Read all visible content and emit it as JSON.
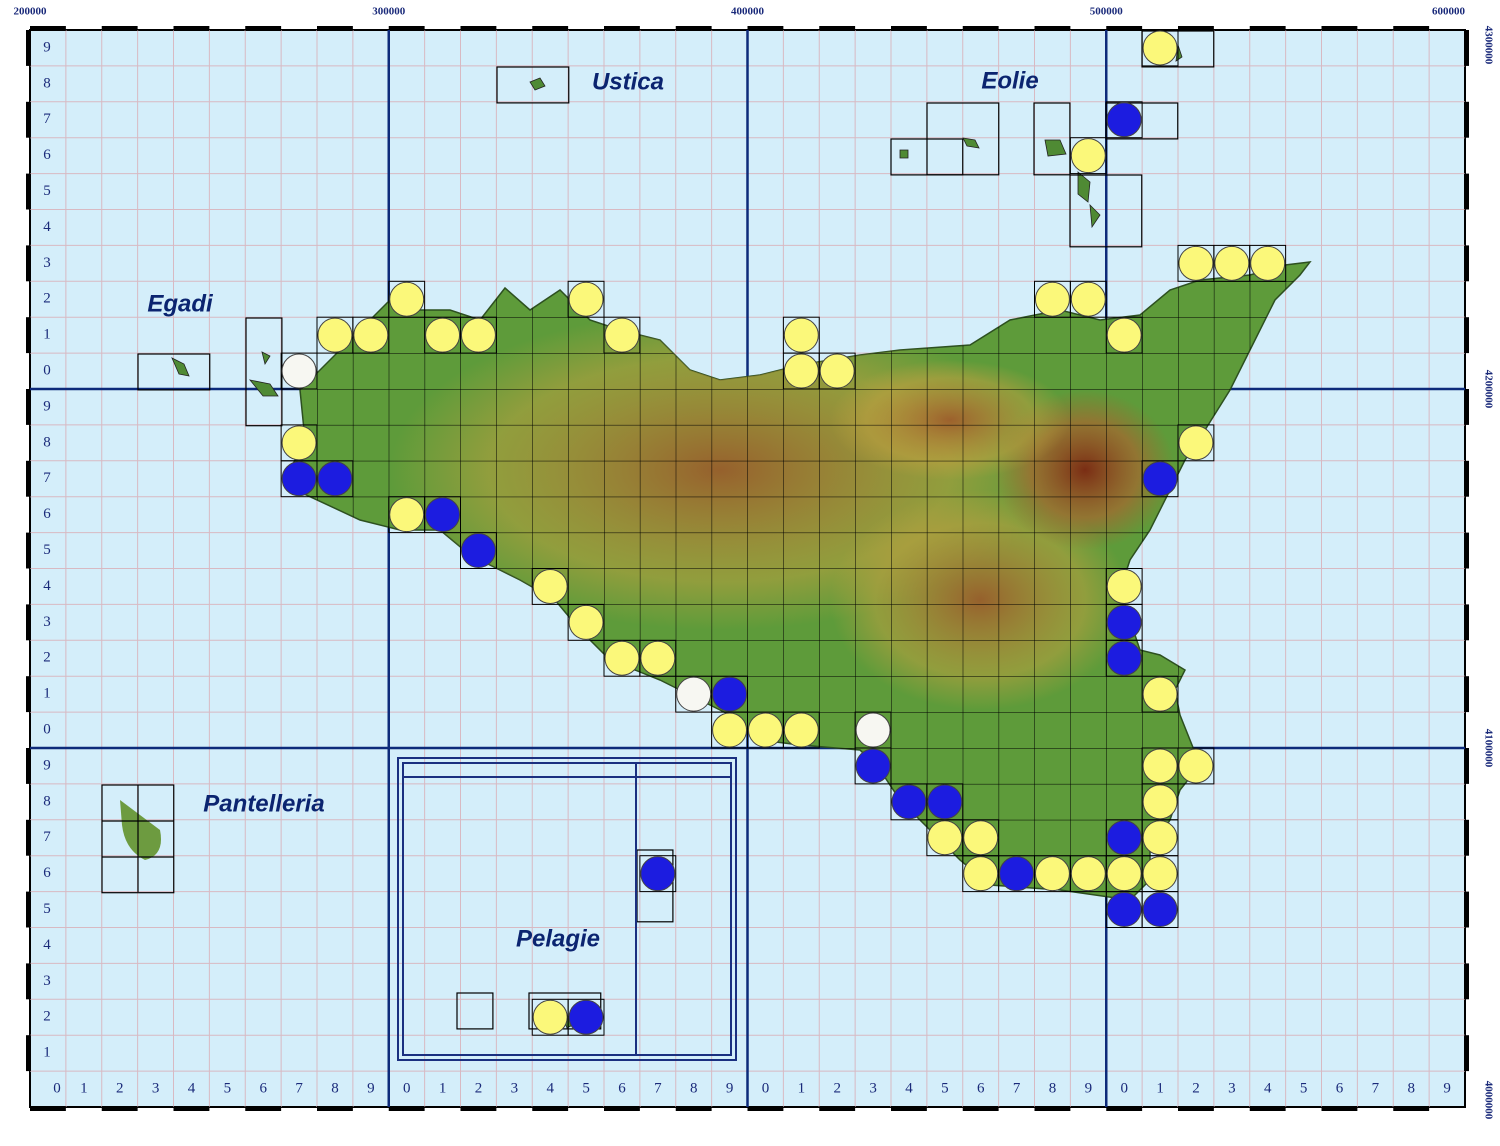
{
  "map": {
    "xlim": [
      200000,
      600000
    ],
    "ylim": [
      4000000,
      4300000
    ],
    "easting_labels": [
      200000,
      300000,
      400000,
      500000,
      600000
    ],
    "northing_labels": [
      4300000,
      4200000,
      4100000,
      4000000
    ],
    "cell_digits": [
      0,
      1,
      2,
      3,
      4,
      5,
      6,
      7,
      8,
      9
    ],
    "places": [
      "Ustica",
      "Eolie",
      "Egadi",
      "Pantelleria",
      "Pelagie"
    ],
    "groups": [
      {
        "color": "#fbf87a",
        "cells": [
          [
            31,
            29
          ],
          [
            29,
            26
          ],
          [
            32,
            23
          ],
          [
            33,
            23
          ],
          [
            34,
            23
          ],
          [
            10,
            22
          ],
          [
            15,
            22
          ],
          [
            28,
            22
          ],
          [
            29,
            22
          ],
          [
            8,
            21
          ],
          [
            9,
            21
          ],
          [
            11,
            21
          ],
          [
            12,
            21
          ],
          [
            16,
            21
          ],
          [
            21,
            21
          ],
          [
            30,
            21
          ],
          [
            21,
            20
          ],
          [
            22,
            20
          ],
          [
            7,
            18
          ],
          [
            32,
            18
          ],
          [
            10,
            16
          ],
          [
            14,
            14
          ],
          [
            30,
            14
          ],
          [
            15,
            13
          ],
          [
            16,
            12
          ],
          [
            17,
            12
          ],
          [
            31,
            11
          ],
          [
            19,
            10
          ],
          [
            20,
            10
          ],
          [
            21,
            10
          ],
          [
            31,
            9
          ],
          [
            32,
            9
          ],
          [
            31,
            8
          ],
          [
            25,
            7
          ],
          [
            26,
            7
          ],
          [
            31,
            7
          ],
          [
            26,
            6
          ],
          [
            28,
            6
          ],
          [
            29,
            6
          ],
          [
            30,
            6
          ],
          [
            31,
            6
          ],
          [
            14,
            2
          ]
        ]
      },
      {
        "color": "#1c1ce0",
        "cells": [
          [
            30,
            27
          ],
          [
            7,
            17
          ],
          [
            8,
            17
          ],
          [
            31,
            17
          ],
          [
            11,
            16
          ],
          [
            12,
            15
          ],
          [
            30,
            13
          ],
          [
            30,
            12
          ],
          [
            19,
            11
          ],
          [
            23,
            9
          ],
          [
            24,
            8
          ],
          [
            25,
            8
          ],
          [
            30,
            7
          ],
          [
            17,
            6
          ],
          [
            27,
            6
          ],
          [
            30,
            5
          ],
          [
            31,
            5
          ],
          [
            15,
            2
          ]
        ]
      },
      {
        "color": "#f7f7f2",
        "cells": [
          [
            7,
            20
          ],
          [
            18,
            11
          ],
          [
            23,
            10
          ]
        ]
      }
    ]
  }
}
